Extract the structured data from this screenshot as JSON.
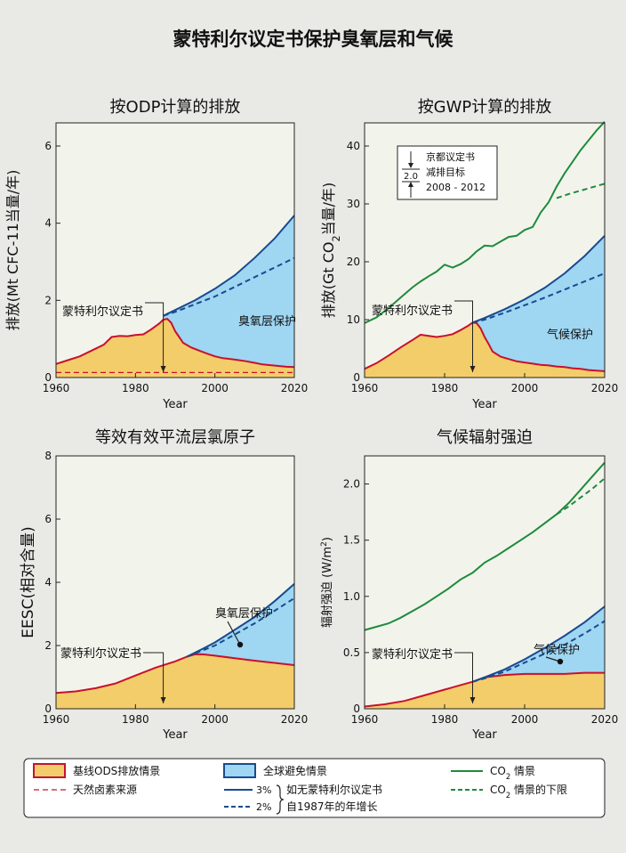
{
  "title": "蒙特利尔议定书保护臭氧层和气候",
  "colors": {
    "baseline_fill": "#f4cd6b",
    "baseline_line": "#c8102e",
    "avoided_fill": "#9fd6f2",
    "blue_line": "#1a4a8f",
    "co2_line": "#1f8a3c",
    "plot_bg": "#f2f4ec",
    "page_bg": "#e9e9e6"
  },
  "chart_data": [
    {
      "id": "odp",
      "type": "area",
      "title": "按ODP计算的排放",
      "xlabel": "Year",
      "ylabel": "排放(Mt CFC-11当量/年)",
      "xlim": [
        1960,
        2020
      ],
      "ylim": [
        0,
        6.6
      ],
      "xticks": [
        1960,
        1980,
        2000,
        2020
      ],
      "yticks": [
        0,
        2,
        4,
        6
      ],
      "series": [
        {
          "role": "baseline",
          "x": [
            1960,
            1963,
            1966,
            1969,
            1972,
            1974,
            1976,
            1978,
            1980,
            1982,
            1984,
            1986,
            1987,
            1988,
            1989,
            1990,
            1991,
            1992,
            1994,
            1996,
            1998,
            2000,
            2002,
            2004,
            2006,
            2008,
            2010,
            2012,
            2014,
            2016,
            2018,
            2020
          ],
          "y": [
            0.35,
            0.45,
            0.55,
            0.7,
            0.85,
            1.05,
            1.08,
            1.07,
            1.1,
            1.12,
            1.25,
            1.4,
            1.5,
            1.52,
            1.42,
            1.2,
            1.05,
            0.9,
            0.78,
            0.7,
            0.62,
            0.55,
            0.5,
            0.48,
            0.45,
            0.42,
            0.38,
            0.34,
            0.32,
            0.3,
            0.28,
            0.27
          ]
        },
        {
          "role": "3pct",
          "x": [
            1987,
            1990,
            1995,
            2000,
            2005,
            2010,
            2015,
            2020
          ],
          "y": [
            1.6,
            1.75,
            2.0,
            2.3,
            2.65,
            3.1,
            3.6,
            4.2
          ]
        },
        {
          "role": "2pct",
          "x": [
            1987,
            1990,
            1995,
            2000,
            2005,
            2010,
            2015,
            2020
          ],
          "y": [
            1.6,
            1.7,
            1.9,
            2.1,
            2.35,
            2.6,
            2.85,
            3.1
          ]
        },
        {
          "role": "natural",
          "x": [
            1960,
            2020
          ],
          "y": [
            0.13,
            0.13
          ]
        }
      ],
      "annotations": [
        {
          "text": "蒙特利尔议定书",
          "x": 1987
        },
        {
          "text": "臭氧层保护"
        }
      ]
    },
    {
      "id": "gwp",
      "type": "area",
      "title": "按GWP计算的排放",
      "xlabel": "Year",
      "ylabel_pre": "排放(Gt CO",
      "ylabel_sub": "2",
      "ylabel_post": "当量/年)",
      "xlim": [
        1960,
        2020
      ],
      "ylim": [
        0,
        44
      ],
      "xticks": [
        1960,
        1980,
        2000,
        2020
      ],
      "yticks": [
        0,
        10,
        20,
        30,
        40
      ],
      "series": [
        {
          "role": "baseline",
          "x": [
            1960,
            1963,
            1966,
            1969,
            1972,
            1974,
            1976,
            1978,
            1980,
            1982,
            1984,
            1986,
            1987,
            1988,
            1989,
            1990,
            1991,
            1992,
            1994,
            1996,
            1998,
            2000,
            2002,
            2004,
            2006,
            2008,
            2010,
            2012,
            2014,
            2016,
            2018,
            2020
          ],
          "y": [
            1.5,
            2.5,
            3.8,
            5.2,
            6.5,
            7.4,
            7.2,
            7.0,
            7.2,
            7.5,
            8.2,
            9.0,
            9.5,
            9.4,
            8.5,
            7.0,
            5.8,
            4.5,
            3.6,
            3.2,
            2.8,
            2.6,
            2.4,
            2.2,
            2.1,
            1.9,
            1.8,
            1.6,
            1.5,
            1.3,
            1.2,
            1.1
          ]
        },
        {
          "role": "3pct",
          "x": [
            1987,
            1990,
            1995,
            2000,
            2005,
            2010,
            2015,
            2020
          ],
          "y": [
            9.5,
            10.3,
            11.8,
            13.5,
            15.5,
            18.0,
            21.0,
            24.5
          ]
        },
        {
          "role": "2pct",
          "x": [
            1987,
            1990,
            1995,
            2000,
            2005,
            2010,
            2015,
            2020
          ],
          "y": [
            9.5,
            10.0,
            11.2,
            12.5,
            13.8,
            15.2,
            16.6,
            18.0
          ]
        },
        {
          "role": "co2",
          "x": [
            1960,
            1963,
            1966,
            1969,
            1972,
            1974,
            1976,
            1978,
            1980,
            1982,
            1984,
            1986,
            1988,
            1990,
            1992,
            1994,
            1996,
            1998,
            2000,
            2002,
            2004,
            2006,
            2008,
            2010,
            2012,
            2014,
            2016,
            2018,
            2020
          ],
          "y": [
            9.4,
            10.4,
            12.0,
            13.8,
            15.6,
            16.6,
            17.5,
            18.3,
            19.5,
            19.0,
            19.6,
            20.5,
            21.8,
            22.8,
            22.7,
            23.5,
            24.3,
            24.5,
            25.5,
            26.0,
            28.5,
            30.3,
            33.0,
            35.3,
            37.3,
            39.3,
            41.0,
            42.7,
            44.2
          ]
        },
        {
          "role": "co2_lower",
          "x": [
            2008,
            2011,
            2014,
            2017,
            2020
          ],
          "y": [
            31.0,
            31.7,
            32.3,
            32.9,
            33.5
          ]
        }
      ],
      "annotations": [
        {
          "text": "蒙特利尔议定书",
          "x": 1987
        },
        {
          "text": "气候保护"
        }
      ],
      "inset": {
        "value": "2.0",
        "lines": [
          "京都议定书",
          "减排目标",
          "2008 - 2012"
        ]
      }
    },
    {
      "id": "eesc",
      "type": "area",
      "title": "等效有效平流层氯原子",
      "xlabel": "Year",
      "ylabel": "EESC(相对含量)",
      "xlim": [
        1960,
        2020
      ],
      "ylim": [
        0,
        8
      ],
      "xticks": [
        1960,
        1980,
        2000,
        2020
      ],
      "yticks": [
        0,
        2,
        4,
        6,
        8
      ],
      "series": [
        {
          "role": "baseline",
          "x": [
            1960,
            1965,
            1970,
            1975,
            1980,
            1985,
            1990,
            1993,
            1995,
            1997,
            2000,
            2005,
            2010,
            2015,
            2020
          ],
          "y": [
            0.5,
            0.55,
            0.65,
            0.8,
            1.05,
            1.3,
            1.5,
            1.65,
            1.72,
            1.72,
            1.68,
            1.6,
            1.52,
            1.45,
            1.38
          ]
        },
        {
          "role": "3pct",
          "x": [
            1993,
            1997,
            2000,
            2005,
            2010,
            2015,
            2020
          ],
          "y": [
            1.65,
            1.9,
            2.1,
            2.5,
            2.9,
            3.4,
            3.95
          ]
        },
        {
          "role": "2pct",
          "x": [
            1993,
            1997,
            2000,
            2005,
            2010,
            2015,
            2020
          ],
          "y": [
            1.65,
            1.85,
            2.0,
            2.35,
            2.7,
            3.1,
            3.5
          ]
        }
      ],
      "annotations": [
        {
          "text": "蒙特利尔议定书",
          "x": 1987
        },
        {
          "text": "臭氧层保护"
        }
      ]
    },
    {
      "id": "rf",
      "type": "area",
      "title": "气候辐射强迫",
      "xlabel": "Year",
      "ylabel_pre": "辐射强迫 (W/m",
      "ylabel_sup": "2",
      "ylabel_post": ")",
      "xlim": [
        1960,
        2020
      ],
      "ylim": [
        0,
        2.25
      ],
      "xticks": [
        1960,
        1980,
        2000,
        2020
      ],
      "yticks": [
        0,
        0.5,
        1.0,
        1.5,
        2.0
      ],
      "ytick_labels": [
        "0",
        "0.5",
        "1.0",
        "1.5",
        "2.0"
      ],
      "series": [
        {
          "role": "baseline",
          "x": [
            1960,
            1965,
            1970,
            1975,
            1980,
            1985,
            1987,
            1990,
            1995,
            2000,
            2005,
            2010,
            2015,
            2020
          ],
          "y": [
            0.02,
            0.04,
            0.07,
            0.12,
            0.17,
            0.22,
            0.24,
            0.28,
            0.3,
            0.31,
            0.31,
            0.31,
            0.32,
            0.32
          ]
        },
        {
          "role": "3pct",
          "x": [
            1987,
            1990,
            1995,
            2000,
            2005,
            2010,
            2015,
            2020
          ],
          "y": [
            0.24,
            0.28,
            0.35,
            0.44,
            0.54,
            0.65,
            0.77,
            0.91
          ]
        },
        {
          "role": "2pct",
          "x": [
            1987,
            1990,
            1995,
            2000,
            2005,
            2010,
            2015,
            2020
          ],
          "y": [
            0.24,
            0.27,
            0.33,
            0.41,
            0.49,
            0.57,
            0.67,
            0.78
          ]
        },
        {
          "role": "co2",
          "x": [
            1960,
            1963,
            1966,
            1969,
            1972,
            1975,
            1978,
            1981,
            1984,
            1987,
            1990,
            1993,
            1996,
            1999,
            2002,
            2005,
            2008,
            2011,
            2014,
            2017,
            2020
          ],
          "y": [
            0.7,
            0.73,
            0.76,
            0.81,
            0.87,
            0.93,
            1.0,
            1.07,
            1.15,
            1.21,
            1.3,
            1.36,
            1.43,
            1.5,
            1.57,
            1.65,
            1.73,
            1.83,
            1.95,
            2.07,
            2.19
          ]
        },
        {
          "role": "co2_lower",
          "x": [
            2008,
            2011,
            2014,
            2017,
            2020
          ],
          "y": [
            1.73,
            1.8,
            1.88,
            1.96,
            2.05
          ]
        }
      ],
      "annotations": [
        {
          "text": "蒙特利尔议定书",
          "x": 1987
        },
        {
          "text": "气候保护"
        }
      ]
    }
  ],
  "legend": {
    "baseline": "基线ODS排放情景",
    "natural": "天然卤素来源",
    "avoided": "全球避免情景",
    "pct3": "3%",
    "pct2": "2%",
    "growth1": "如无蒙特利尔议定书",
    "growth2": "自1987年的年增长",
    "co2_pre": "CO",
    "co2_sub": "2",
    "co2_post": " 情景",
    "co2_lower_post": " 情景的下限"
  }
}
